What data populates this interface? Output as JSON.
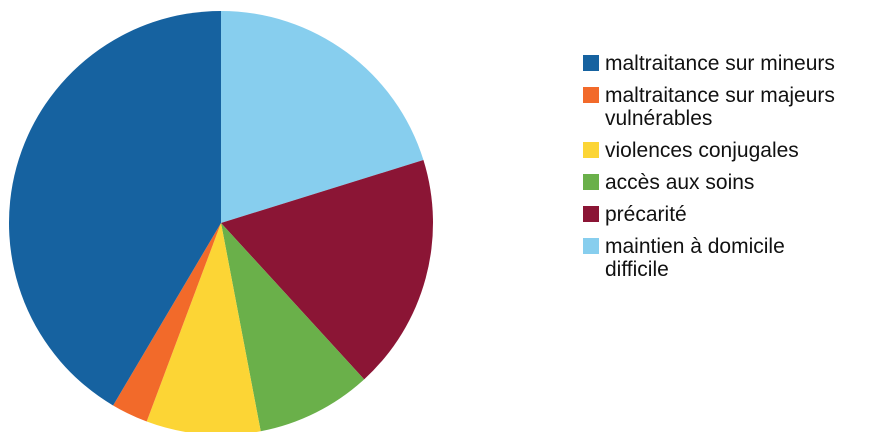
{
  "chart_data": {
    "type": "pie",
    "title": "",
    "start_angle_deg": 0,
    "direction": "clockwise",
    "slices": [
      {
        "label": "maintien à domicile\ndifficile",
        "value": 20.2,
        "color": "#87ceee"
      },
      {
        "label": "précarité",
        "value": 18.0,
        "color": "#8b1535"
      },
      {
        "label": "accès aux soins",
        "value": 8.8,
        "color": "#6ab04a"
      },
      {
        "label": "violences conjugales",
        "value": 8.7,
        "color": "#fcd535"
      },
      {
        "label": "maltraitance sur majeurs\nvulnérables",
        "value": 2.8,
        "color": "#f26a2a"
      },
      {
        "label": "maltraitance sur mineurs",
        "value": 41.5,
        "color": "#1662a0"
      }
    ],
    "legend": {
      "position": "right",
      "order": [
        5,
        4,
        3,
        2,
        1,
        0
      ]
    }
  }
}
